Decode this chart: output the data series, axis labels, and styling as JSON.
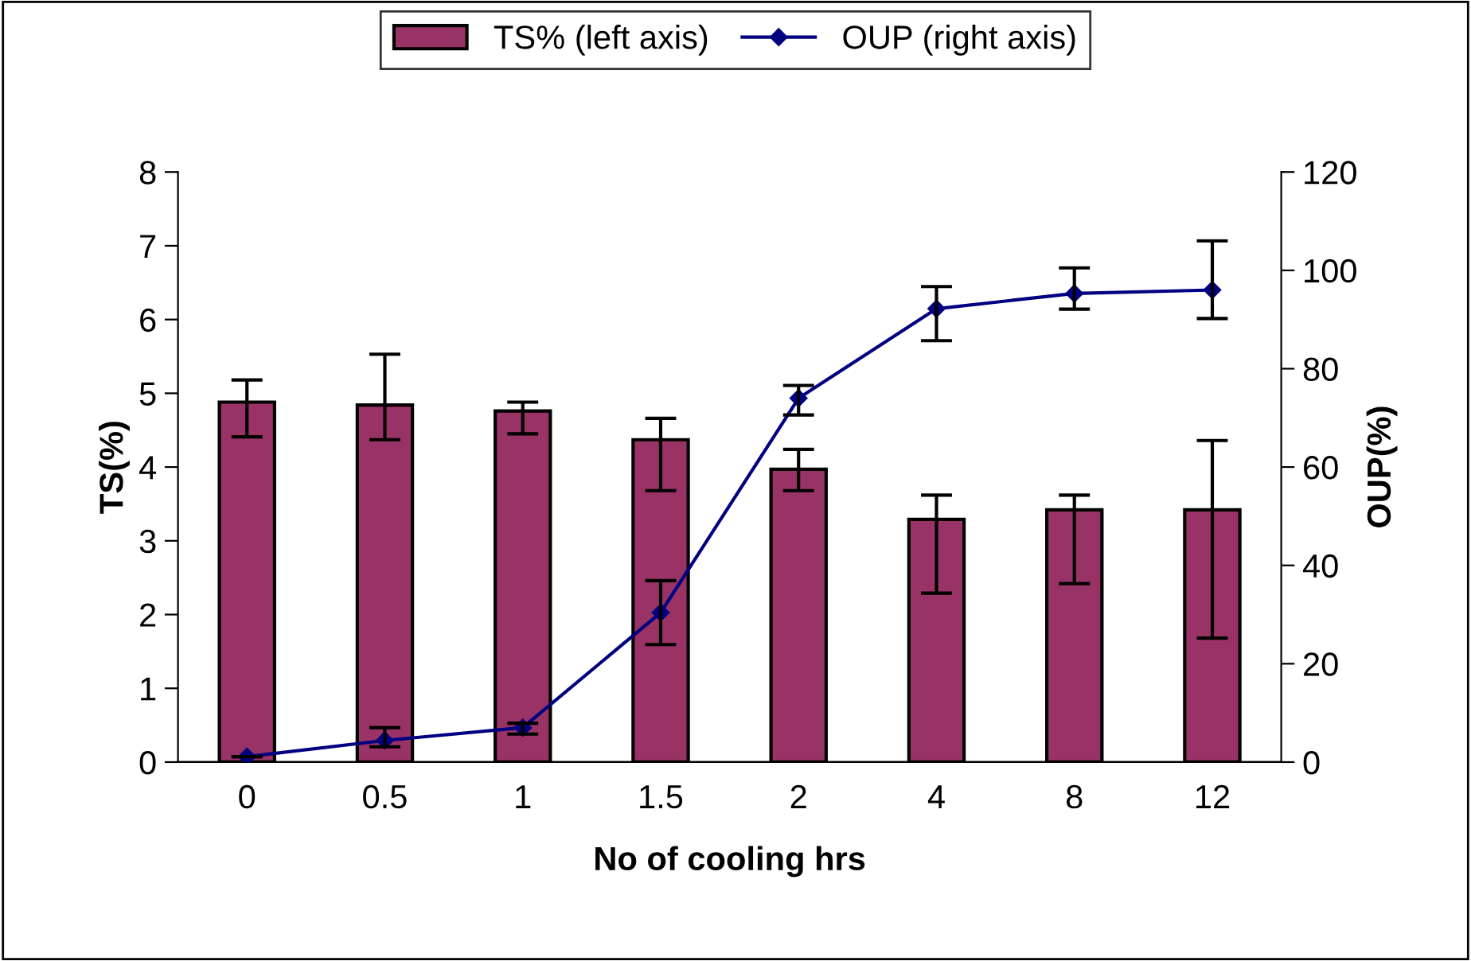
{
  "chart_data": {
    "type": "bar",
    "xlabel": "No of cooling hrs",
    "ylabel": "TS(%)",
    "y2label": "OUP(%)",
    "categories": [
      "0",
      "0.5",
      "1",
      "1.5",
      "2",
      "4",
      "8",
      "12"
    ],
    "series": [
      {
        "name": "TS% (left axis)",
        "color": "#993366",
        "values": [
          4.88,
          4.84,
          4.76,
          4.37,
          3.97,
          3.29,
          3.42,
          3.42
        ],
        "errors": [
          [
            4.41,
            5.18
          ],
          [
            4.37,
            5.53
          ],
          [
            4.45,
            4.88
          ],
          [
            3.68,
            4.66
          ],
          [
            3.68,
            4.24
          ],
          [
            2.29,
            3.62
          ],
          [
            2.42,
            3.62
          ],
          [
            1.68,
            4.36
          ]
        ]
      },
      {
        "name": "OUP (right axis)",
        "type": "line",
        "axis": "y2",
        "color": "#000080",
        "marker": "diamond",
        "values": [
          1.1,
          4.4,
          7.0,
          30.4,
          74.0,
          92.2,
          95.3,
          96.0
        ],
        "errors": [
          null,
          [
            3.1,
            7.0
          ],
          [
            5.7,
            7.9
          ],
          [
            23.9,
            36.9
          ],
          [
            70.6,
            76.6
          ],
          [
            85.7,
            96.7
          ],
          [
            92.1,
            100.5
          ],
          [
            90.2,
            106
          ]
        ]
      }
    ],
    "ylim": [
      0,
      8
    ],
    "yticks": [
      0,
      1,
      2,
      3,
      4,
      5,
      6,
      7,
      8
    ],
    "y2lim": [
      0,
      120
    ],
    "y2ticks": [
      0,
      20,
      40,
      60,
      80,
      100,
      120
    ],
    "grid": false,
    "legend": "top"
  }
}
